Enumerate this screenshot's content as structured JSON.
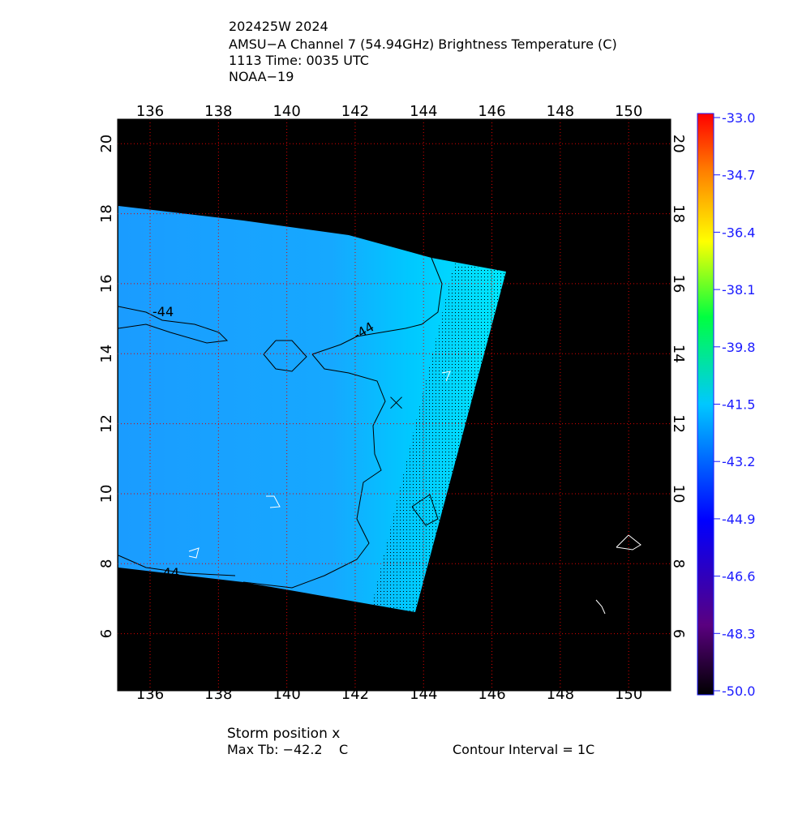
{
  "header": {
    "lines": [
      "202425W 2024",
      "AMSU−A Channel 7 (54.94GHz) Brightness Temperature (C)",
      "1113 Time: 0035 UTC",
      "NOAA−19"
    ]
  },
  "map": {
    "xlim": [
      135.05,
      151.23
    ],
    "ylim": [
      4.37,
      20.7
    ],
    "xticks": [
      136,
      138,
      140,
      142,
      144,
      146,
      148,
      150
    ],
    "yticks": [
      6,
      8,
      10,
      12,
      14,
      16,
      18,
      20
    ],
    "storm_position": [
      143.2,
      12.6
    ],
    "contour_labels": [
      "-44",
      "-44",
      "-44"
    ]
  },
  "colorbar": {
    "lim": [
      -50,
      -33
    ],
    "ticks": [
      {
        "value": -33,
        "label": "-33.0"
      },
      {
        "value": -34.7,
        "label": "-34.7"
      },
      {
        "value": -36.4,
        "label": "-36.4"
      },
      {
        "value": -38.1,
        "label": "-38.1"
      },
      {
        "value": -39.8,
        "label": "-39.8"
      },
      {
        "value": -41.5,
        "label": "-41.5"
      },
      {
        "value": -43.2,
        "label": "-43.2"
      },
      {
        "value": -44.9,
        "label": "-44.9"
      },
      {
        "value": -46.6,
        "label": "-46.6"
      },
      {
        "value": -48.3,
        "label": "-48.3"
      },
      {
        "value": -50,
        "label": "-50.0"
      }
    ]
  },
  "footer": {
    "storm": "Storm position x",
    "max_tb": "Max Tb: −42.2    C",
    "contour": "Contour Interval = 1C"
  }
}
